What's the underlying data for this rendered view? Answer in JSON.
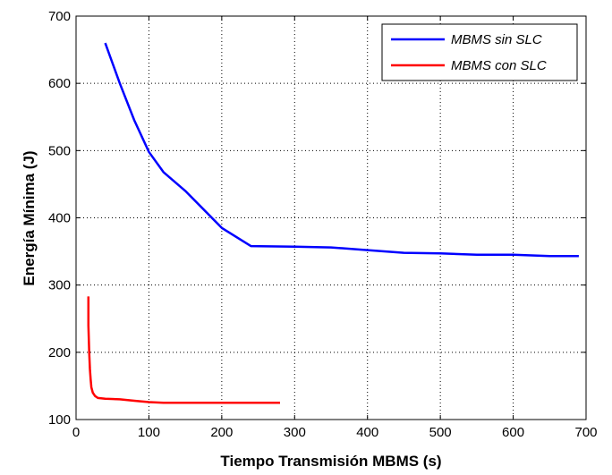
{
  "chart_data": {
    "type": "line",
    "title": "",
    "xlabel": "Tiempo Transmisión MBMS (s)",
    "ylabel": "Energía Mínima (J)",
    "xlim": [
      0,
      700
    ],
    "ylim": [
      100,
      700
    ],
    "xticks": [
      0,
      100,
      200,
      300,
      400,
      500,
      600,
      700
    ],
    "yticks": [
      100,
      200,
      300,
      400,
      500,
      600,
      700
    ],
    "grid": true,
    "legend_position": "top-right",
    "series": [
      {
        "name": "MBMS sin SLC",
        "color": "#0000ff",
        "x": [
          40,
          60,
          80,
          100,
          120,
          150,
          200,
          240,
          300,
          350,
          400,
          450,
          500,
          550,
          600,
          650,
          690
        ],
        "y": [
          660,
          600,
          545,
          498,
          468,
          440,
          385,
          358,
          357,
          356,
          352,
          348,
          347,
          345,
          345,
          343,
          343
        ]
      },
      {
        "name": "MBMS con SLC",
        "color": "#ff0000",
        "x": [
          17,
          17,
          18,
          19,
          20,
          21,
          23,
          26,
          30,
          40,
          60,
          80,
          100,
          120,
          150,
          200,
          250,
          280
        ],
        "y": [
          283,
          240,
          200,
          175,
          160,
          148,
          140,
          135,
          132,
          131,
          130,
          128,
          126,
          125,
          125,
          125,
          125,
          125
        ]
      }
    ]
  }
}
